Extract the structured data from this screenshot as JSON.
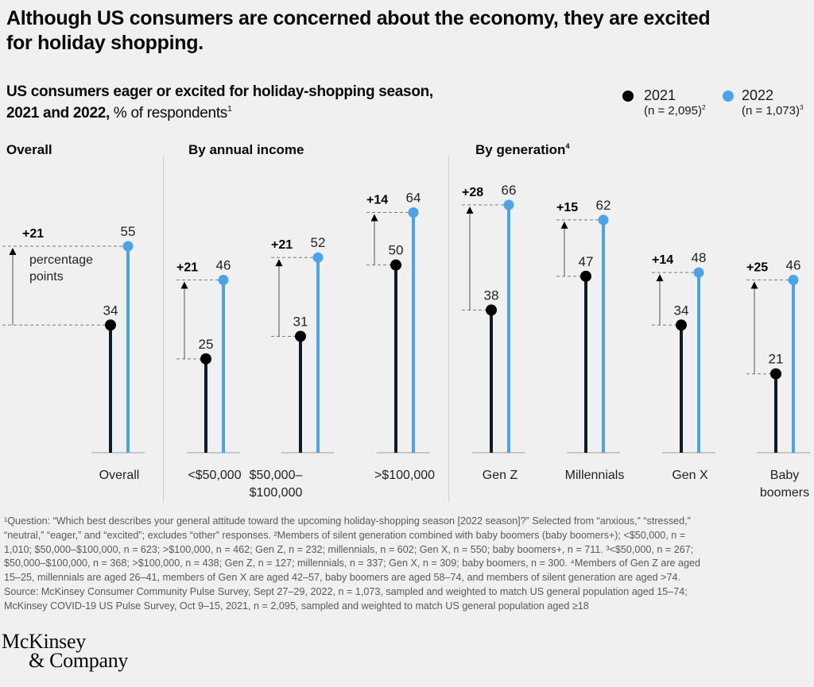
{
  "header": {
    "title_lines": [
      "Although US consumers are concerned about the economy, they are excited",
      "for holiday shopping."
    ],
    "subtitle_line1": "US consumers eager or excited for holiday-shopping season,",
    "subtitle_bold": "2021 and 2022,",
    "subtitle_regular": " % of respondents",
    "subtitle_footnote": "1"
  },
  "legend": [
    {
      "label": "2021",
      "n": "(n = 2,095)",
      "footnote": "2",
      "color": "#000000"
    },
    {
      "label": "2022",
      "n": "(n = 1,073)",
      "footnote": "3",
      "color": "#4ba3ea"
    }
  ],
  "sections": [
    {
      "title": "Overall",
      "footnote": ""
    },
    {
      "title": "By annual income",
      "footnote": ""
    },
    {
      "title": "By generation",
      "footnote": "4"
    }
  ],
  "chart_data": {
    "type": "bar",
    "subtype": "paired lollipop (dot-stem) comparison",
    "title": "US consumers eager or excited for holiday-shopping season, 2021 and 2022",
    "ylabel": "% of respondents",
    "xlabel": "",
    "legend_position": "top-right",
    "grid": false,
    "categories": [
      "Overall",
      "<$50,000",
      "$50,000–$100,000",
      ">$100,000",
      "Gen Z",
      "Millennials",
      "Gen X",
      "Baby boomers"
    ],
    "groups": [
      {
        "section": "Overall",
        "label_lines": [
          "Overall"
        ]
      },
      {
        "section": "By annual income",
        "label_lines": [
          "<$50,000"
        ]
      },
      {
        "section": "By annual income",
        "label_lines": [
          "$50,000–",
          "$100,000"
        ]
      },
      {
        "section": "By annual income",
        "label_lines": [
          ">$100,000"
        ]
      },
      {
        "section": "By generation",
        "label_lines": [
          "Gen Z"
        ]
      },
      {
        "section": "By generation",
        "label_lines": [
          "Millennials"
        ]
      },
      {
        "section": "By generation",
        "label_lines": [
          "Gen X"
        ]
      },
      {
        "section": "By generation",
        "label_lines": [
          "Baby",
          "boomers"
        ]
      }
    ],
    "series": [
      {
        "name": "2021",
        "color": "#000000",
        "stem_color": "#0d1b2a",
        "values": [
          34,
          25,
          31,
          50,
          38,
          47,
          34,
          21
        ]
      },
      {
        "name": "2022",
        "color": "#4ba3ea",
        "stem_color": "#4ba3ea",
        "values": [
          55,
          46,
          52,
          64,
          66,
          62,
          48,
          46
        ]
      }
    ],
    "changes": [
      "+21",
      "+21",
      "+21",
      "+14",
      "+28",
      "+15",
      "+14",
      "+25"
    ],
    "annotation_lines": [
      "percentage",
      "points"
    ]
  },
  "footnotes": [
    "¹Question: “Which best describes your general attitude toward the upcoming holiday-shopping season [2022 season]?” Selected from “anxious,” “stressed,”",
    "“neutral,” “eager,” and “excited”; excludes “other” responses. ²Members of silent generation combined with baby boomers (baby boomers+); <$50,000, n =",
    "1,010; $50,000–$100,000, n = 623; >$100,000, n = 462; Gen Z, n = 232; millennials, n = 602; Gen X, n = 550; baby boomers+, n = 711. ³<$50,000, n = 267;",
    "$50,000–$100,000, n = 368; >$100,000, n = 438; Gen Z, n = 127; millennials, n = 337; Gen X, n = 309; baby boomers, n = 300. ⁴Members of Gen Z are aged",
    "15–25, millennials are aged 26–41, members of Gen X are aged 42–57, baby boomers are aged 58–74, and members of silent generation are aged >74.",
    "Source: McKinsey Consumer Community Pulse Survey, Sept 27–29, 2022, n = 1,073, sampled and weighted to match US general population aged 15–74;",
    "McKinsey COVID-19 US Pulse Survey, Oct 9–15, 2021, n = 2,095, sampled and weighted to match US general population aged ≥18"
  ],
  "logo": {
    "line1": "McKinsey",
    "line2": "& Company"
  }
}
